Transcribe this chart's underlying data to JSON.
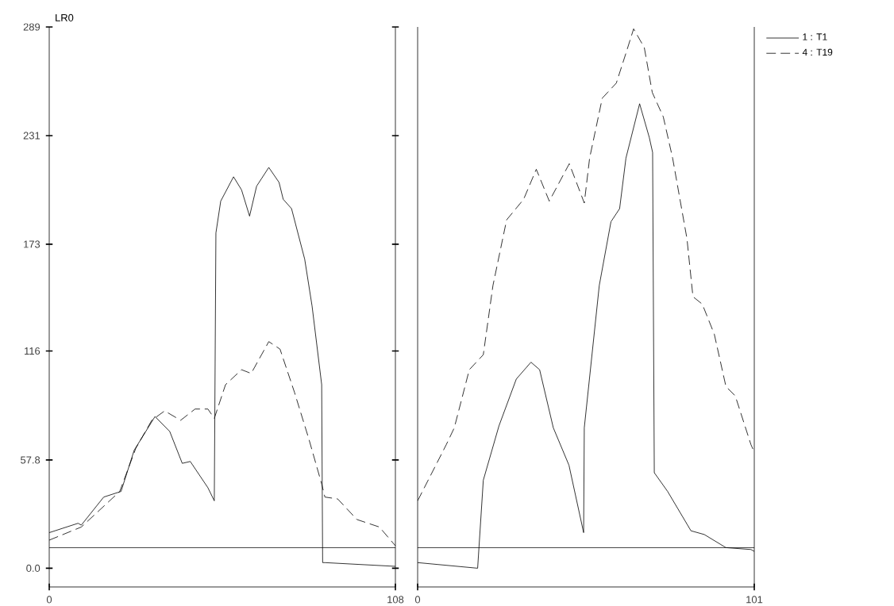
{
  "chart_data": [
    {
      "type": "line",
      "ylabel": "LR0",
      "xlim": [
        0,
        108
      ],
      "xticks": [
        0,
        108
      ],
      "ylim": [
        -10,
        289
      ],
      "yticks": [
        {
          "value": 0,
          "label": "0.0"
        },
        57.8,
        116,
        173,
        231,
        289
      ],
      "marker": "none",
      "ref_lines": [
        {
          "axis": "y",
          "value": 11,
          "label": null
        }
      ],
      "series": [
        {
          "color": "#000000",
          "line_style": "solid",
          "x": [
            0,
            9,
            10,
            17,
            22.4,
            26.5,
            33,
            37.6,
            41.5,
            44,
            49.5,
            51.5,
            52,
            53.5,
            57.5,
            60,
            62.5,
            64.7,
            68.5,
            71.7,
            73,
            75.6,
            79.7,
            82,
            85,
            85.3,
            86,
            108
          ],
          "values": [
            19,
            24,
            23,
            38,
            41,
            63,
            81,
            73,
            56,
            57,
            43,
            36,
            179,
            196,
            209,
            202,
            188,
            204,
            214,
            206,
            197,
            192,
            165,
            140,
            98,
            3,
            3,
            1
          ]
        },
        {
          "color": "#000000",
          "line_style": "dashed",
          "x": [
            0,
            10,
            22,
            27,
            32,
            36,
            41,
            45.5,
            49.5,
            51.5,
            55,
            60,
            63,
            68.5,
            72,
            76.5,
            81,
            85,
            86,
            90,
            96,
            103,
            108
          ],
          "values": [
            15,
            22,
            41,
            64,
            79,
            84,
            79,
            85,
            85,
            80,
            98,
            106,
            104,
            121,
            117,
            94,
            69,
            45,
            38,
            37,
            26,
            22,
            12
          ]
        }
      ]
    },
    {
      "type": "line",
      "xlim": [
        0,
        101
      ],
      "xticks": [
        0,
        101
      ],
      "ylim": [
        -10,
        289
      ],
      "tick_labels": "x",
      "marker": "none",
      "legend": "top right",
      "ref_lines": [
        {
          "axis": "y",
          "value": 11,
          "label": null
        }
      ],
      "series": [
        {
          "name": "1 : T1",
          "color": "#000000",
          "line_style": "solid",
          "x": [
            0,
            18,
            19.7,
            24.4,
            29.6,
            34,
            36.6,
            40.7,
            45.4,
            49.8,
            50,
            54.5,
            58,
            60.6,
            62.5,
            66.6,
            69.5,
            70.5,
            71,
            75,
            82,
            86,
            92.5,
            100,
            101
          ],
          "values": [
            3,
            0,
            47,
            76,
            101,
            110,
            106,
            75,
            55,
            19,
            75,
            151,
            185,
            192,
            219,
            248,
            230,
            222,
            51,
            41,
            20,
            18,
            11,
            10,
            9
          ]
        },
        {
          "name": "4 : T19",
          "color": "#000000",
          "line_style": "dashed",
          "x": [
            0,
            8.6,
            11,
            15.5,
            19.7,
            22.6,
            26.7,
            31.8,
            35.6,
            39.5,
            45.5,
            50,
            51.6,
            55.4,
            59.6,
            62.5,
            64.8,
            68,
            70.4,
            73.7,
            76.5,
            80.8,
            82.6,
            85.4,
            89,
            92.5,
            95.3,
            100,
            101
          ],
          "values": [
            36,
            66,
            75,
            106,
            114,
            151,
            186,
            197,
            213,
            196,
            216,
            195,
            219,
            251,
            259,
            275,
            288,
            278,
            254,
            241,
            219,
            176,
            145,
            141,
            125,
            97,
            92,
            66,
            62
          ]
        }
      ]
    }
  ]
}
